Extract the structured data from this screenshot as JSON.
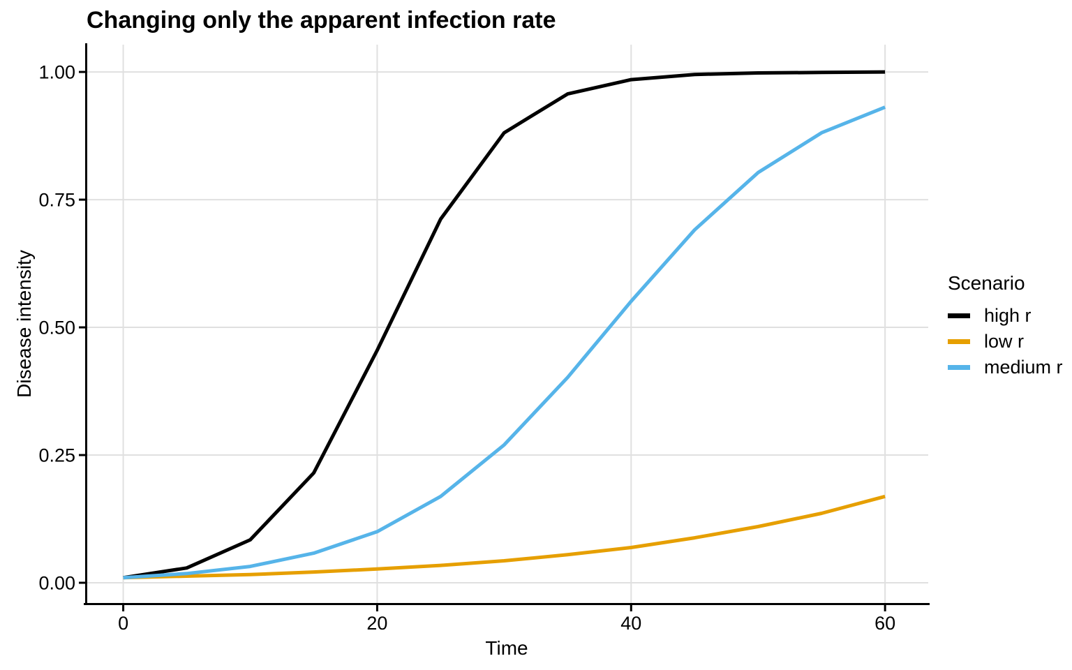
{
  "chart": {
    "title": "Changing only the apparent infection rate",
    "xlabel": "Time",
    "ylabel": "Disease intensity"
  },
  "legend": {
    "title": "Scenario",
    "entries": [
      {
        "label": "high r",
        "color": "#000000"
      },
      {
        "label": "low r",
        "color": "#E69F00"
      },
      {
        "label": "medium r",
        "color": "#56B4E9"
      }
    ]
  },
  "chart_data": {
    "type": "line",
    "title": "Changing only the apparent infection rate",
    "xlabel": "Time",
    "ylabel": "Disease intensity",
    "x": [
      0,
      5,
      10,
      15,
      20,
      25,
      30,
      35,
      40,
      45,
      50,
      55,
      60
    ],
    "series": [
      {
        "name": "high r",
        "color": "#000000",
        "values": [
          0.01,
          0.029,
          0.084,
          0.215,
          0.455,
          0.712,
          0.881,
          0.957,
          0.985,
          0.995,
          0.998,
          0.999,
          1.0
        ]
      },
      {
        "name": "low r",
        "color": "#E69F00",
        "values": [
          0.01,
          0.013,
          0.016,
          0.021,
          0.027,
          0.034,
          0.043,
          0.055,
          0.069,
          0.088,
          0.11,
          0.136,
          0.169
        ]
      },
      {
        "name": "medium r",
        "color": "#56B4E9",
        "values": [
          0.01,
          0.018,
          0.032,
          0.058,
          0.1,
          0.169,
          0.27,
          0.402,
          0.551,
          0.691,
          0.803,
          0.881,
          0.931
        ]
      }
    ],
    "x_ticks": {
      "values": [
        0,
        20,
        40,
        60
      ],
      "labels": [
        "0",
        "20",
        "40",
        "60"
      ]
    },
    "y_ticks": {
      "values": [
        0,
        0.25,
        0.5,
        0.75,
        1
      ],
      "labels": [
        "0.00",
        "0.25",
        "0.50",
        "0.75",
        "1.00"
      ]
    },
    "xlim": [
      -3,
      63.4
    ],
    "ylim": [
      -0.0396,
      1.0534
    ],
    "grid": true,
    "legend_position": "right",
    "colors": {
      "grid": "#E0E0E0",
      "axis": "#000000",
      "background": "#FFFFFF"
    }
  }
}
